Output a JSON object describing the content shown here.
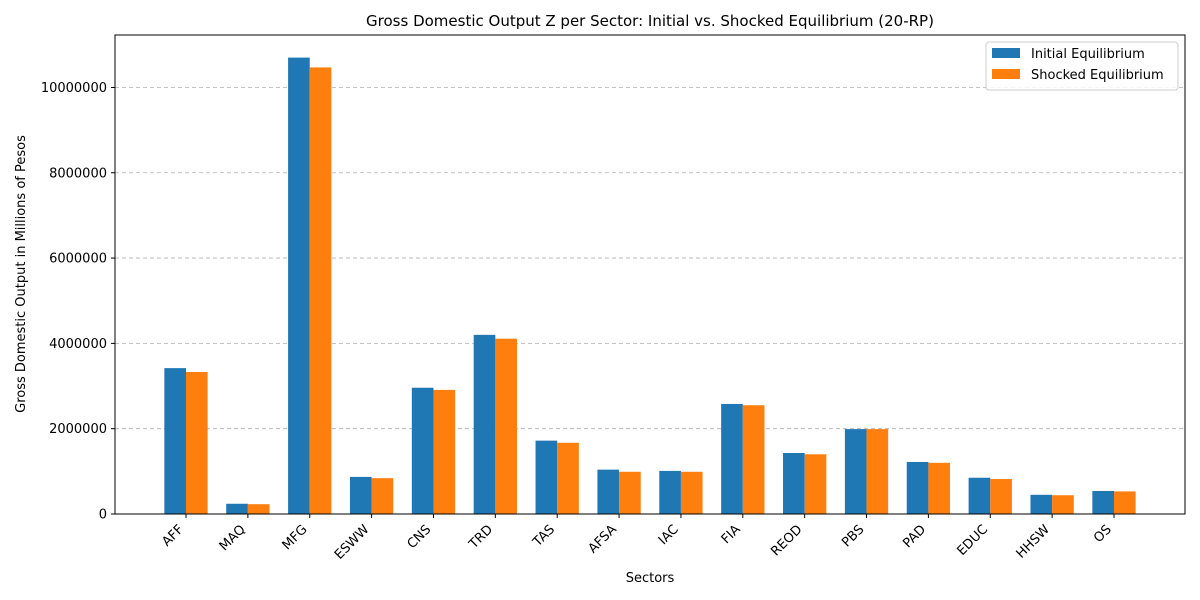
{
  "chart_data": {
    "type": "bar",
    "title": "Gross Domestic Output Z per Sector: Initial vs. Shocked Equilibrium (20-RP)",
    "xlabel": "Sectors",
    "ylabel": "Gross Domestic Output in Millions of Pesos",
    "categories": [
      "AFF",
      "MAQ",
      "MFG",
      "ESWW",
      "CNS",
      "TRD",
      "TAS",
      "AFSA",
      "IAC",
      "FIA",
      "REOD",
      "PBS",
      "PAD",
      "EDUC",
      "HHSW",
      "OS"
    ],
    "series": [
      {
        "name": "Initial Equilibrium",
        "color": "#1f77b4",
        "values": [
          3420000,
          240000,
          10700000,
          870000,
          2960000,
          4200000,
          1720000,
          1040000,
          1010000,
          2580000,
          1430000,
          1990000,
          1220000,
          850000,
          450000,
          540000
        ]
      },
      {
        "name": "Shocked Equilibrium",
        "color": "#ff7f0e",
        "values": [
          3330000,
          230000,
          10470000,
          840000,
          2910000,
          4110000,
          1670000,
          990000,
          990000,
          2550000,
          1400000,
          1990000,
          1200000,
          820000,
          440000,
          530000
        ]
      }
    ],
    "ylim": [
      0,
      11230000
    ],
    "yticks": [
      0,
      2000000,
      4000000,
      6000000,
      8000000,
      10000000
    ],
    "ytick_labels": [
      "0",
      "2000000",
      "4000000",
      "6000000",
      "8000000",
      "10000000"
    ],
    "grid": "y-dashed",
    "legend_position": "top-right"
  }
}
